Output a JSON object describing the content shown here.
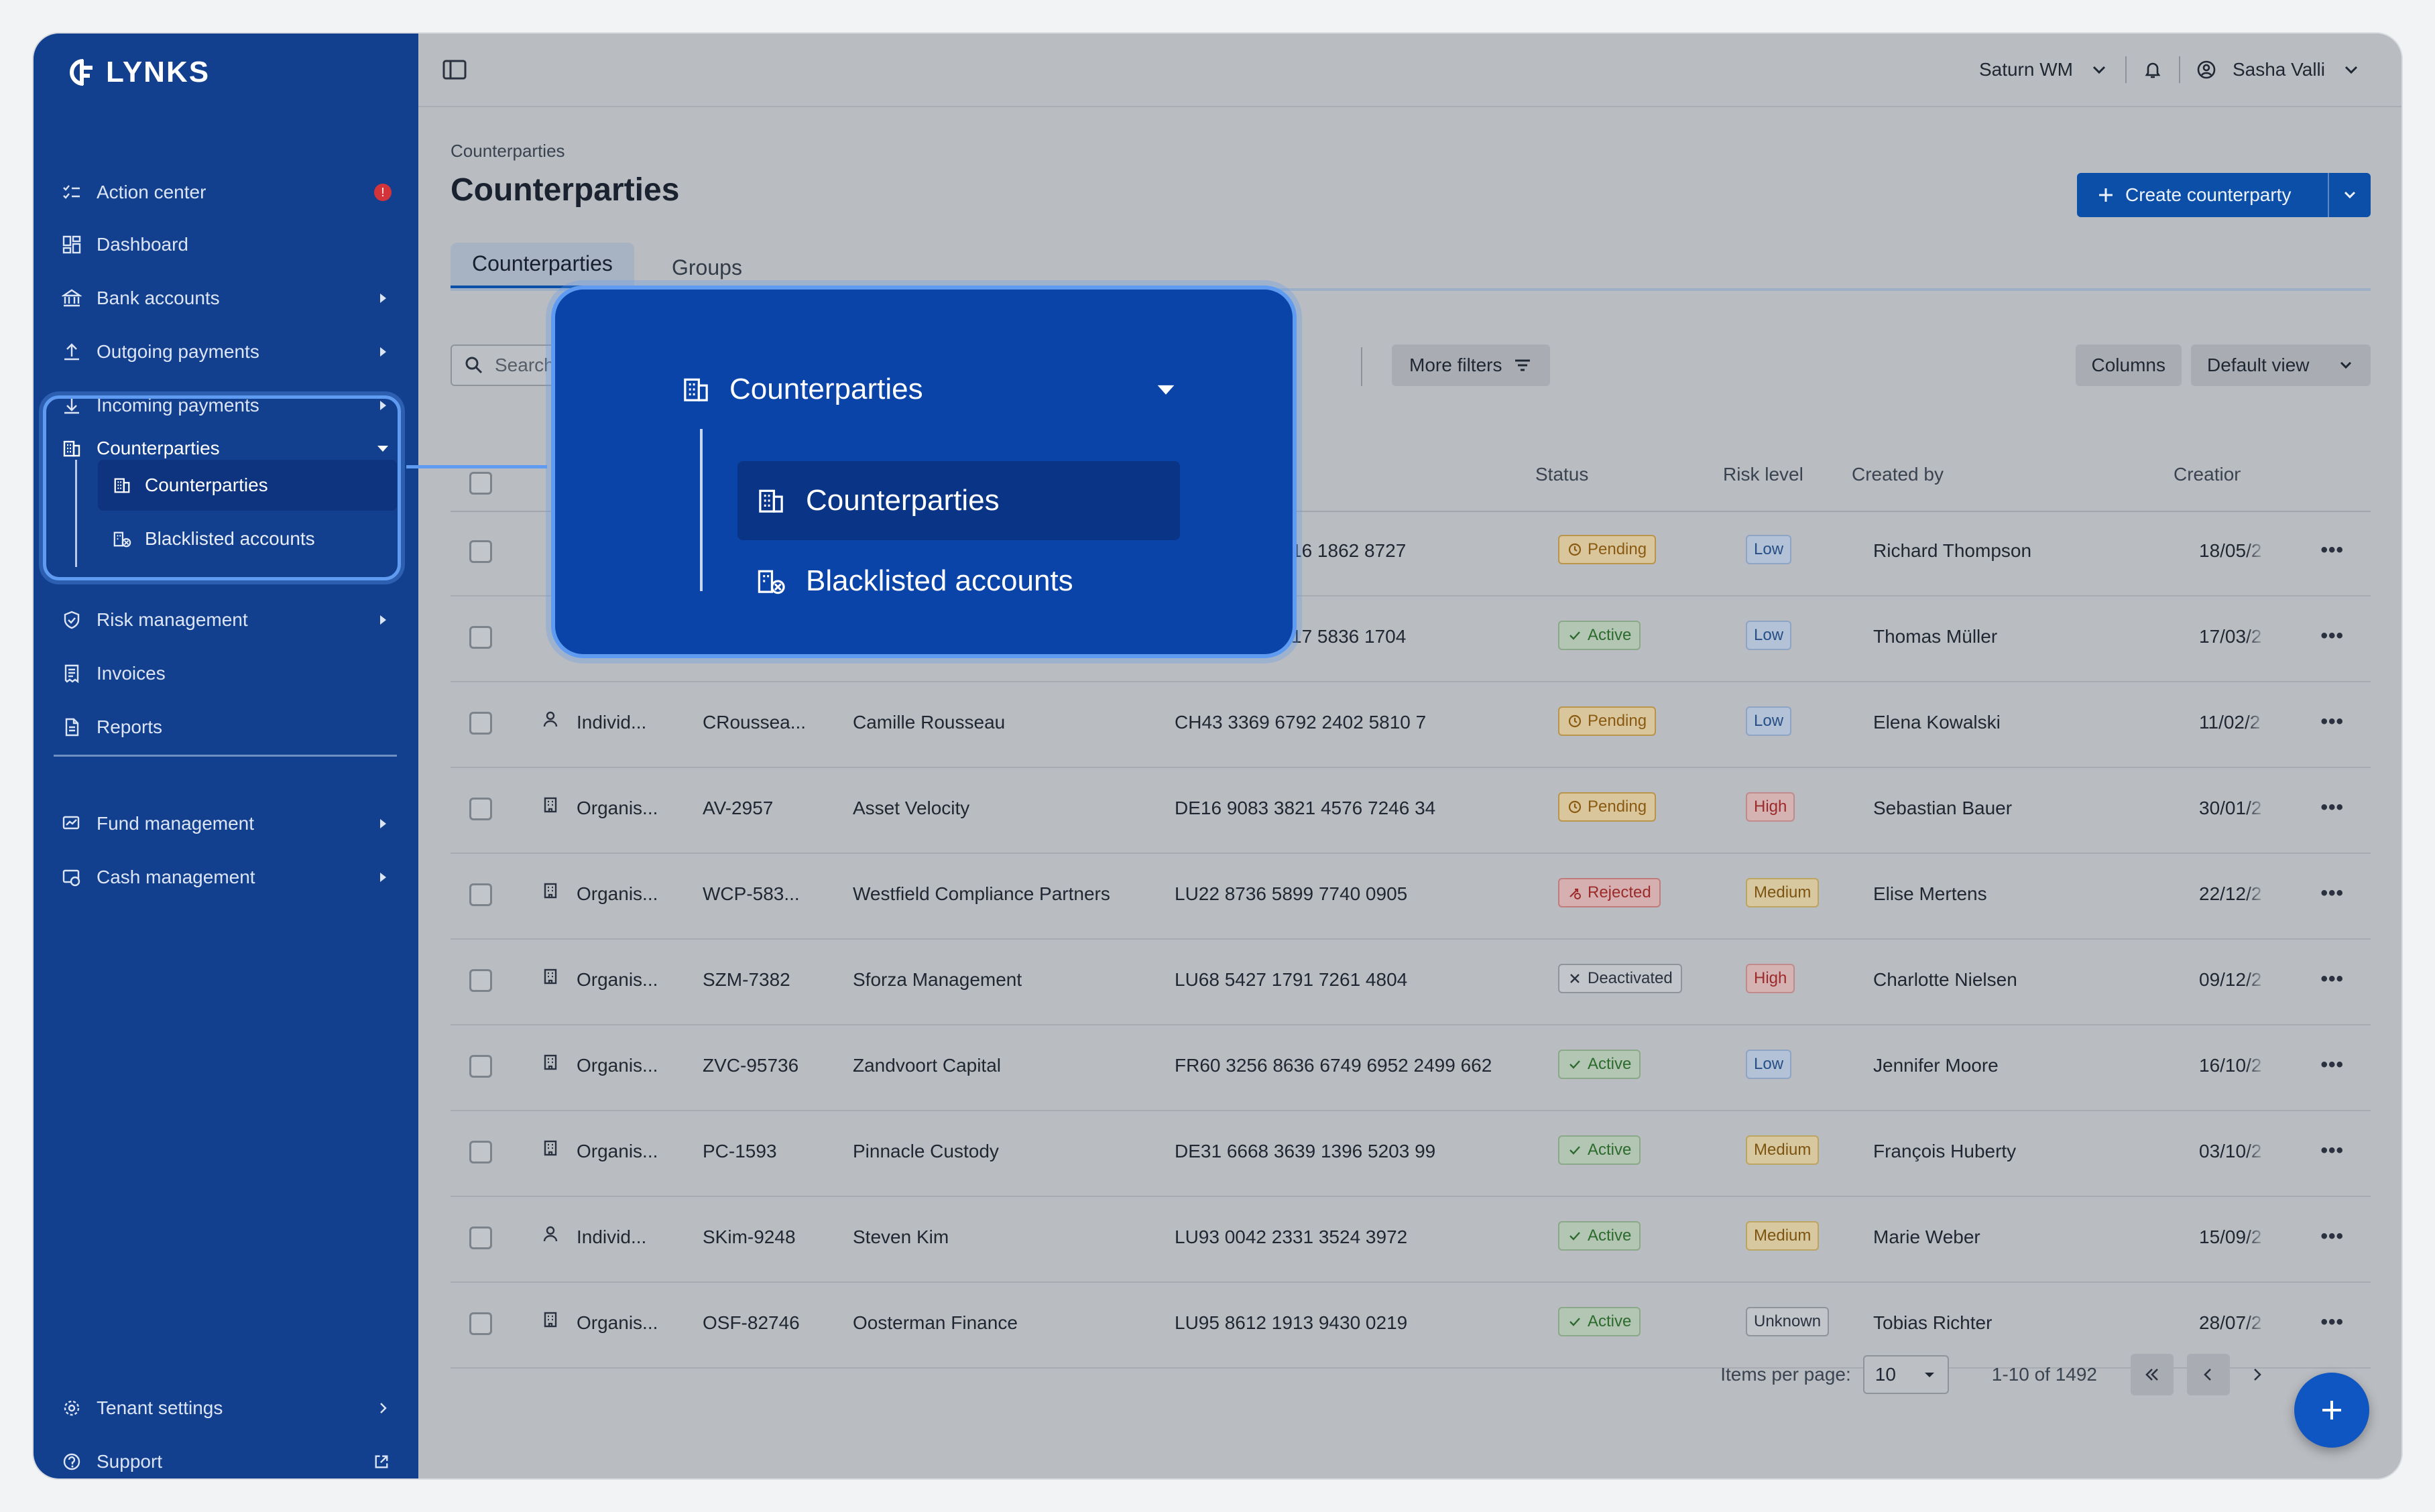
{
  "app": {
    "logo": "LYNKS"
  },
  "sidebar": {
    "items": [
      {
        "label": "Action center",
        "icon": "checklist-icon"
      },
      {
        "label": "Dashboard",
        "icon": "dashboard-icon"
      },
      {
        "label": "Bank accounts",
        "icon": "bank-icon"
      },
      {
        "label": "Outgoing payments",
        "icon": "upload-icon"
      },
      {
        "label": "Incoming payments",
        "icon": "download-icon"
      },
      {
        "label": "Counterparties",
        "icon": "building-icon"
      },
      {
        "label": "Risk management",
        "icon": "shield-icon"
      },
      {
        "label": "Invoices",
        "icon": "invoice-icon"
      },
      {
        "label": "Reports",
        "icon": "document-icon"
      },
      {
        "label": "Fund management",
        "icon": "fund-icon"
      },
      {
        "label": "Cash management",
        "icon": "cash-icon"
      },
      {
        "label": "Tenant settings",
        "icon": "gear-icon"
      },
      {
        "label": "Support",
        "icon": "help-icon"
      }
    ],
    "action_badge": "!",
    "sub_items": [
      {
        "label": "Counterparties",
        "active": true
      },
      {
        "label": "Blacklisted accounts",
        "active": false
      }
    ]
  },
  "topbar": {
    "org": "Saturn WM",
    "user": "Sasha Valli"
  },
  "page": {
    "breadcrumb": "Counterparties",
    "title": "Counterparties",
    "create_button": "Create counterparty",
    "tabs": [
      "Counterparties",
      "Groups"
    ]
  },
  "toolbar": {
    "search_placeholder": "Search",
    "more_filters": "More filters",
    "columns": "Columns",
    "view": "Default view"
  },
  "table": {
    "headers": {
      "status": "Status",
      "risk": "Risk level",
      "created_by": "Created by",
      "creation": "Creation d"
    },
    "rows": [
      {
        "type": "",
        "ref": "",
        "name": "",
        "iban": "16 1862 8727",
        "status": "Pending",
        "risk": "Low",
        "created_by": "Richard Thompson",
        "date": "18/05/2"
      },
      {
        "type": "",
        "ref": "",
        "name": "",
        "iban": "17 5836 1704",
        "status": "Active",
        "risk": "Low",
        "created_by": "Thomas Müller",
        "date": "17/03/2"
      },
      {
        "type": "Individ...",
        "ref": "CRoussea...",
        "name": "Camille Rousseau",
        "iban": "CH43 3369 6792 2402 5810 7",
        "status": "Pending",
        "risk": "Low",
        "created_by": "Elena Kowalski",
        "date": "11/02/2"
      },
      {
        "type": "Organis...",
        "ref": "AV-2957",
        "name": "Asset Velocity",
        "iban": "DE16 9083 3821 4576 7246 34",
        "status": "Pending",
        "risk": "High",
        "created_by": "Sebastian Bauer",
        "date": "30/01/2"
      },
      {
        "type": "Organis...",
        "ref": "WCP-583...",
        "name": "Westfield Compliance Partners",
        "iban": "LU22 8736 5899 7740 0905",
        "status": "Rejected",
        "risk": "Medium",
        "created_by": "Elise Mertens",
        "date": "22/12/2"
      },
      {
        "type": "Organis...",
        "ref": "SZM-7382",
        "name": "Sforza Management",
        "iban": "LU68 5427 1791 7261 4804",
        "status": "Deactivated",
        "risk": "High",
        "created_by": "Charlotte Nielsen",
        "date": "09/12/2"
      },
      {
        "type": "Organis...",
        "ref": "ZVC-95736",
        "name": "Zandvoort Capital",
        "iban": "FR60 3256 8636 6749 6952 2499 662",
        "status": "Active",
        "risk": "Low",
        "created_by": "Jennifer Moore",
        "date": "16/10/2"
      },
      {
        "type": "Organis...",
        "ref": "PC-1593",
        "name": "Pinnacle Custody",
        "iban": "DE31 6668 3639 1396 5203 99",
        "status": "Active",
        "risk": "Medium",
        "created_by": "François Huberty",
        "date": "03/10/2"
      },
      {
        "type": "Individ...",
        "ref": "SKim-9248",
        "name": "Steven Kim",
        "iban": "LU93 0042 2331 3524 3972",
        "status": "Active",
        "risk": "Medium",
        "created_by": "Marie Weber",
        "date": "15/09/2"
      },
      {
        "type": "Organis...",
        "ref": "OSF-82746",
        "name": "Oosterman Finance",
        "iban": "LU95 8612 1913 9430 0219",
        "status": "Active",
        "risk": "Unknown",
        "created_by": "Tobias Richter",
        "date": "28/07/2"
      }
    ]
  },
  "pagination": {
    "items_per_page_label": "Items per page:",
    "items_per_page": "10",
    "range": "1-10 of 1492"
  },
  "zoom": {
    "group_label": "Counterparties",
    "items": [
      {
        "label": "Counterparties"
      },
      {
        "label": "Blacklisted accounts"
      }
    ]
  },
  "colors": {
    "sidebar": "#133f8f",
    "accent": "#0b4fa8",
    "highlight": "#5f9bf0"
  }
}
